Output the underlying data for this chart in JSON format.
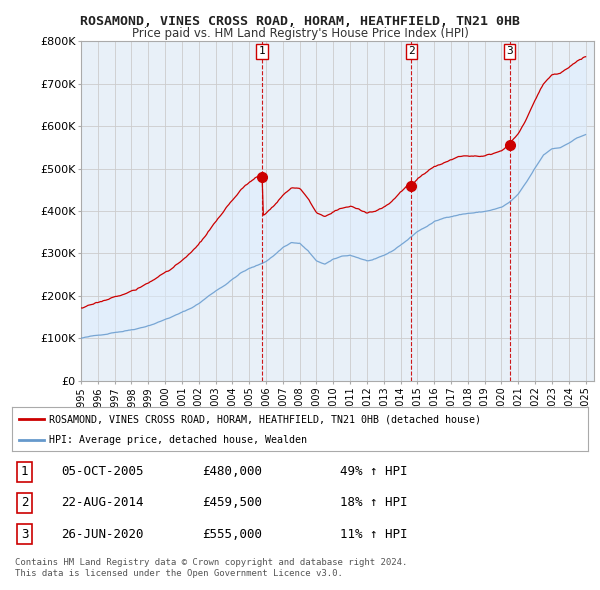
{
  "title": "ROSAMOND, VINES CROSS ROAD, HORAM, HEATHFIELD, TN21 0HB",
  "subtitle": "Price paid vs. HM Land Registry's House Price Index (HPI)",
  "ylabel_ticks": [
    "£0",
    "£100K",
    "£200K",
    "£300K",
    "£400K",
    "£500K",
    "£600K",
    "£700K",
    "£800K"
  ],
  "ylim": [
    0,
    800000
  ],
  "xlim_start": 1995.0,
  "xlim_end": 2025.5,
  "sale_color": "#cc0000",
  "hpi_color": "#6699cc",
  "fill_color": "#ddeeff",
  "vline_color": "#cc0000",
  "sales": [
    {
      "date": 2005.76,
      "price": 480000,
      "label": "1"
    },
    {
      "date": 2014.64,
      "price": 459500,
      "label": "2"
    },
    {
      "date": 2020.48,
      "price": 555000,
      "label": "3"
    }
  ],
  "legend_sale_label": "ROSAMOND, VINES CROSS ROAD, HORAM, HEATHFIELD, TN21 0HB (detached house)",
  "legend_hpi_label": "HPI: Average price, detached house, Wealden",
  "table_rows": [
    {
      "num": "1",
      "date": "05-OCT-2005",
      "price": "£480,000",
      "pct": "49% ↑ HPI"
    },
    {
      "num": "2",
      "date": "22-AUG-2014",
      "price": "£459,500",
      "pct": "18% ↑ HPI"
    },
    {
      "num": "3",
      "date": "26-JUN-2020",
      "price": "£555,000",
      "pct": "11% ↑ HPI"
    }
  ],
  "footnote1": "Contains HM Land Registry data © Crown copyright and database right 2024.",
  "footnote2": "This data is licensed under the Open Government Licence v3.0.",
  "background_color": "#ffffff",
  "grid_color": "#cccccc",
  "hpi_segments": [
    [
      1995.0,
      100000
    ],
    [
      1995.5,
      103000
    ],
    [
      1996.0,
      106000
    ],
    [
      1996.5,
      110000
    ],
    [
      1997.0,
      115000
    ],
    [
      1997.5,
      118000
    ],
    [
      1998.0,
      122000
    ],
    [
      1998.5,
      127000
    ],
    [
      1999.0,
      133000
    ],
    [
      1999.5,
      140000
    ],
    [
      2000.0,
      148000
    ],
    [
      2000.5,
      156000
    ],
    [
      2001.0,
      164000
    ],
    [
      2001.5,
      173000
    ],
    [
      2002.0,
      185000
    ],
    [
      2002.5,
      200000
    ],
    [
      2003.0,
      215000
    ],
    [
      2003.5,
      228000
    ],
    [
      2004.0,
      243000
    ],
    [
      2004.5,
      258000
    ],
    [
      2005.0,
      268000
    ],
    [
      2005.5,
      275000
    ],
    [
      2006.0,
      285000
    ],
    [
      2006.5,
      300000
    ],
    [
      2007.0,
      318000
    ],
    [
      2007.5,
      330000
    ],
    [
      2008.0,
      328000
    ],
    [
      2008.5,
      310000
    ],
    [
      2009.0,
      285000
    ],
    [
      2009.5,
      278000
    ],
    [
      2010.0,
      288000
    ],
    [
      2010.5,
      295000
    ],
    [
      2011.0,
      298000
    ],
    [
      2011.5,
      292000
    ],
    [
      2012.0,
      285000
    ],
    [
      2012.5,
      288000
    ],
    [
      2013.0,
      295000
    ],
    [
      2013.5,
      305000
    ],
    [
      2014.0,
      320000
    ],
    [
      2014.5,
      335000
    ],
    [
      2015.0,
      352000
    ],
    [
      2015.5,
      363000
    ],
    [
      2016.0,
      375000
    ],
    [
      2016.5,
      382000
    ],
    [
      2017.0,
      388000
    ],
    [
      2017.5,
      393000
    ],
    [
      2018.0,
      396000
    ],
    [
      2018.5,
      398000
    ],
    [
      2019.0,
      400000
    ],
    [
      2019.5,
      405000
    ],
    [
      2020.0,
      410000
    ],
    [
      2020.5,
      422000
    ],
    [
      2021.0,
      440000
    ],
    [
      2021.5,
      468000
    ],
    [
      2022.0,
      500000
    ],
    [
      2022.5,
      530000
    ],
    [
      2023.0,
      545000
    ],
    [
      2023.5,
      548000
    ],
    [
      2024.0,
      560000
    ],
    [
      2024.5,
      572000
    ],
    [
      2025.0,
      580000
    ]
  ]
}
